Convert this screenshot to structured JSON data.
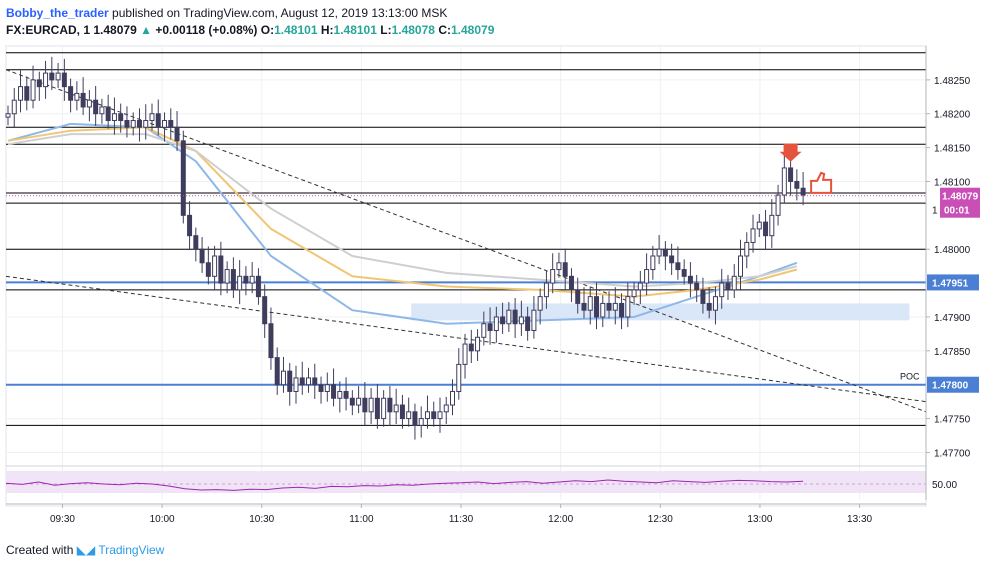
{
  "header": {
    "author": "Bobby_the_trader",
    "published_text": "published on TradingView.com, August 12, 2019 13:13:00 MSK",
    "symbol": "FX:EURCAD, 1",
    "last": "1.48079",
    "change": "+0.00118 (+0.08%)",
    "open_label": "O:",
    "open": "1.48101",
    "high_label": "H:",
    "high": "1.48101",
    "low_label": "L:",
    "low": "1.48078",
    "close_label": "C:",
    "close": "1.48079"
  },
  "footer": {
    "created_with": "Created with",
    "brand": "TradingView"
  },
  "colors": {
    "candle_up": "#ffffff",
    "candle_down": "#3f3d5e",
    "level_blue": "#4a7fd4",
    "ma_fast": "#8fb8e8",
    "ma_mid": "#f0c674",
    "ma_slow": "#cfcfcf",
    "rsi": "#9c27b0",
    "rsi_band": "#f1e4f7",
    "price_badge": "#c94fb7",
    "arrow": "#e5533d",
    "zone": "#d6e4f7"
  },
  "chart_data": {
    "type": "candlestick",
    "symbol": "FX:EURCAD",
    "interval": "1",
    "price_range": [
      1.4768,
      1.483
    ],
    "time_range": [
      "09:13",
      "13:50"
    ],
    "x_ticks": [
      "09:30",
      "10:00",
      "10:30",
      "11:00",
      "11:30",
      "12:00",
      "12:30",
      "13:00",
      "13:30"
    ],
    "y_ticks": [
      "1.48250",
      "1.48200",
      "1.48150",
      "1.48100",
      "1.48000",
      "1.47900",
      "1.47850",
      "1.47750",
      "1.47700"
    ],
    "last_price_label": "1.48079",
    "countdown_label": "00:01",
    "countdown_prefix": "1",
    "horizontal_levels": [
      {
        "price": 1.47951,
        "label": "1.47951",
        "style": "blue"
      },
      {
        "price": 1.478,
        "label": "1.47800",
        "style": "blue",
        "note": "POC"
      },
      {
        "price": 1.4829,
        "style": "black"
      },
      {
        "price": 1.48265,
        "style": "black"
      },
      {
        "price": 1.4818,
        "style": "black"
      },
      {
        "price": 1.48155,
        "style": "black"
      },
      {
        "price": 1.48083,
        "style": "black"
      },
      {
        "price": 1.48068,
        "style": "black"
      },
      {
        "price": 1.48,
        "style": "black"
      },
      {
        "price": 1.4794,
        "style": "black"
      },
      {
        "price": 1.4774,
        "style": "black"
      }
    ],
    "zone": {
      "t_from": "11:15",
      "t_to": "13:45",
      "price_from": 1.47895,
      "price_to": 1.4792
    },
    "trendlines": [
      {
        "t1": "09:13",
        "p1": 1.48265,
        "t2": "13:50",
        "p2": 1.4776
      },
      {
        "t1": "09:13",
        "p1": 1.4796,
        "t2": "13:50",
        "p2": 1.47775
      }
    ],
    "candles_close": [
      1.482,
      1.4822,
      1.4824,
      1.4822,
      1.4825,
      1.4824,
      1.4826,
      1.4825,
      1.4826,
      1.4824,
      1.4822,
      1.4823,
      1.4821,
      1.4822,
      1.482,
      1.4821,
      1.4819,
      1.482,
      1.4819,
      1.4818,
      1.4819,
      1.4818,
      1.4819,
      1.482,
      1.4818,
      1.4819,
      1.4818,
      1.4816,
      1.4805,
      1.4802,
      1.48,
      1.4798,
      1.4796,
      1.4799,
      1.4795,
      1.4797,
      1.4794,
      1.4796,
      1.4795,
      1.4796,
      1.4793,
      1.4789,
      1.4784,
      1.478,
      1.4782,
      1.4779,
      1.4781,
      1.478,
      1.4781,
      1.478,
      1.4779,
      1.478,
      1.4778,
      1.4779,
      1.4778,
      1.4777,
      1.4778,
      1.4776,
      1.4778,
      1.4775,
      1.4778,
      1.4776,
      1.4777,
      1.4775,
      1.4776,
      1.4774,
      1.4775,
      1.4776,
      1.4775,
      1.4776,
      1.4777,
      1.4779,
      1.4783,
      1.4786,
      1.4785,
      1.4787,
      1.4789,
      1.4788,
      1.479,
      1.4789,
      1.4791,
      1.4789,
      1.479,
      1.4788,
      1.4791,
      1.4793,
      1.4795,
      1.4797,
      1.4798,
      1.4796,
      1.4794,
      1.4792,
      1.4791,
      1.4793,
      1.479,
      1.4792,
      1.4791,
      1.4792,
      1.479,
      1.4793,
      1.4794,
      1.4795,
      1.4797,
      1.4799,
      1.48,
      1.4799,
      1.4798,
      1.4797,
      1.4796,
      1.4795,
      1.4794,
      1.4792,
      1.4791,
      1.4793,
      1.4795,
      1.4794,
      1.4796,
      1.4799,
      1.4801,
      1.4803,
      1.4804,
      1.4802,
      1.4805,
      1.4808,
      1.4812,
      1.481,
      1.4809,
      1.4808
    ],
    "moving_averages": [
      {
        "color": "#8fb8e8",
        "points": [
          [
            0,
            1.4816
          ],
          [
            10,
            1.48185
          ],
          [
            22,
            1.4818
          ],
          [
            30,
            1.4813
          ],
          [
            42,
            1.4799
          ],
          [
            55,
            1.4791
          ],
          [
            70,
            1.4789
          ],
          [
            85,
            1.47895
          ],
          [
            100,
            1.479
          ],
          [
            110,
            1.4793
          ],
          [
            120,
            1.4796
          ],
          [
            126,
            1.4798
          ]
        ]
      },
      {
        "color": "#f0c674",
        "points": [
          [
            0,
            1.4816
          ],
          [
            10,
            1.48175
          ],
          [
            22,
            1.4818
          ],
          [
            30,
            1.48145
          ],
          [
            42,
            1.4803
          ],
          [
            55,
            1.4796
          ],
          [
            70,
            1.47945
          ],
          [
            85,
            1.4794
          ],
          [
            100,
            1.4793
          ],
          [
            110,
            1.4794
          ],
          [
            120,
            1.47955
          ],
          [
            126,
            1.4797
          ]
        ]
      },
      {
        "color": "#cfcfcf",
        "points": [
          [
            0,
            1.48155
          ],
          [
            10,
            1.4817
          ],
          [
            22,
            1.4817
          ],
          [
            30,
            1.48145
          ],
          [
            42,
            1.4806
          ],
          [
            55,
            1.4799
          ],
          [
            70,
            1.47965
          ],
          [
            85,
            1.47955
          ],
          [
            100,
            1.47945
          ],
          [
            110,
            1.4795
          ],
          [
            120,
            1.4796
          ],
          [
            126,
            1.47975
          ]
        ]
      }
    ],
    "rsi": {
      "label": "50.00",
      "values": [
        52,
        49,
        55,
        47,
        51,
        53,
        50,
        48,
        52,
        50,
        45,
        38,
        35,
        36,
        34,
        37,
        36,
        40,
        42,
        39,
        44,
        43,
        46,
        45,
        48,
        47,
        50,
        52,
        53,
        55,
        51,
        54,
        56,
        52,
        55,
        58,
        56,
        60,
        57,
        55,
        53,
        58,
        56,
        54,
        57,
        59,
        58,
        56,
        55,
        57
      ]
    }
  }
}
